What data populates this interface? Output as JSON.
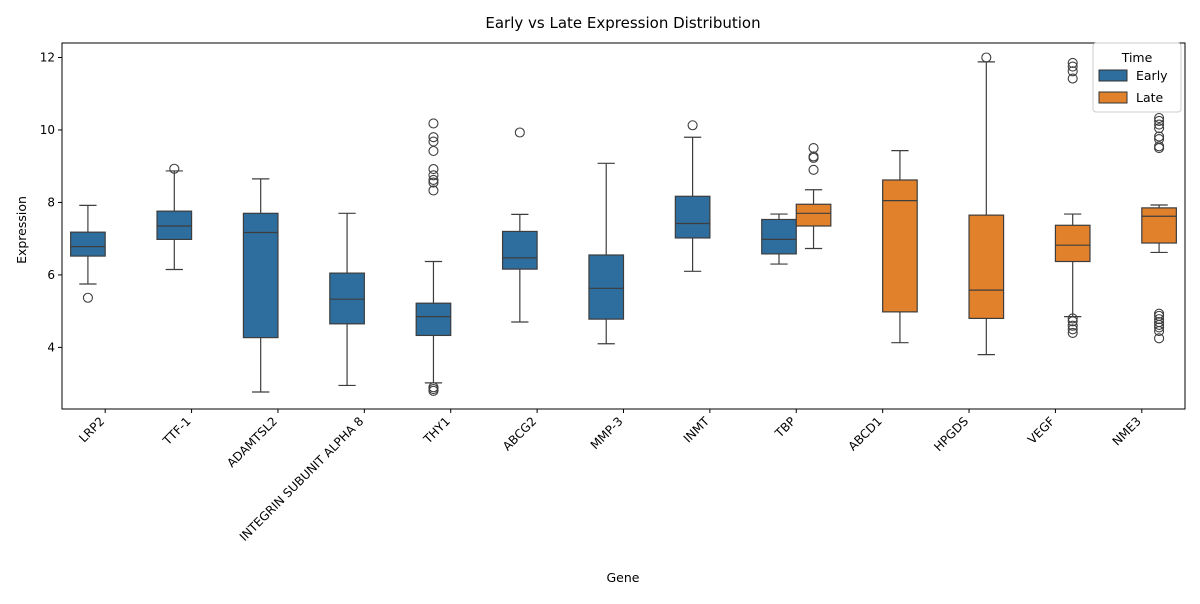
{
  "chart_data": {
    "type": "box",
    "title": "Early vs Late Expression Distribution",
    "xlabel": "Gene",
    "ylabel": "Expression",
    "ylim": [
      2.3,
      12.4
    ],
    "yticks": [
      4,
      6,
      8,
      10,
      12
    ],
    "grid": false,
    "legend": {
      "title": "Time",
      "placement": "top-right",
      "entries": [
        "Early",
        "Late"
      ]
    },
    "categories": [
      "LRP2",
      "TTF-1",
      "ADAMTSL2",
      "INTEGRIN SUBUNIT ALPHA 8",
      "THY1",
      "ABCG2",
      "MMP-3",
      "INMT",
      "TBP",
      "ABCD1",
      "HPGDS",
      "VEGF",
      "NME3"
    ],
    "series": [
      {
        "name": "Early",
        "color": "#2e6e9e",
        "boxes": [
          {
            "category": "LRP2",
            "whislo": 5.75,
            "q1": 6.52,
            "med": 6.78,
            "q3": 7.18,
            "whishi": 7.92,
            "fliers": [
              5.37
            ]
          },
          {
            "category": "TTF-1",
            "whislo": 6.15,
            "q1": 6.98,
            "med": 7.35,
            "q3": 7.76,
            "whishi": 8.87,
            "fliers": [
              8.93
            ]
          },
          {
            "category": "ADAMTSL2",
            "whislo": 2.77,
            "q1": 4.27,
            "med": 7.17,
            "q3": 7.7,
            "whishi": 8.65,
            "fliers": []
          },
          {
            "category": "INTEGRIN SUBUNIT ALPHA 8",
            "whislo": 2.95,
            "q1": 4.65,
            "med": 5.33,
            "q3": 6.05,
            "whishi": 7.7,
            "fliers": []
          },
          {
            "category": "THY1",
            "whislo": 3.02,
            "q1": 4.33,
            "med": 4.85,
            "q3": 5.22,
            "whishi": 6.37,
            "fliers": [
              2.8,
              2.85,
              2.9,
              8.33,
              8.55,
              8.62,
              8.75,
              8.92,
              9.42,
              9.68,
              9.8,
              10.18
            ]
          },
          {
            "category": "ABCG2",
            "whislo": 4.7,
            "q1": 6.16,
            "med": 6.47,
            "q3": 7.2,
            "whishi": 7.67,
            "fliers": [
              9.93
            ]
          },
          {
            "category": "MMP-3",
            "whislo": 4.1,
            "q1": 4.78,
            "med": 5.63,
            "q3": 6.55,
            "whishi": 9.08,
            "fliers": []
          },
          {
            "category": "INMT",
            "whislo": 6.1,
            "q1": 7.02,
            "med": 7.42,
            "q3": 8.17,
            "whishi": 9.8,
            "fliers": [
              10.13
            ]
          },
          {
            "category": "TBP",
            "whislo": 6.3,
            "q1": 6.58,
            "med": 6.98,
            "q3": 7.53,
            "whishi": 7.68,
            "fliers": []
          }
        ]
      },
      {
        "name": "Late",
        "color": "#e1812c",
        "boxes": [
          {
            "category": "TBP",
            "whislo": 6.73,
            "q1": 7.35,
            "med": 7.7,
            "q3": 7.95,
            "whishi": 8.35,
            "fliers": [
              8.9,
              9.23,
              9.27,
              9.5
            ]
          },
          {
            "category": "ABCD1",
            "whislo": 4.13,
            "q1": 4.98,
            "med": 8.05,
            "q3": 8.62,
            "whishi": 9.43,
            "fliers": []
          },
          {
            "category": "HPGDS",
            "whislo": 3.8,
            "q1": 4.8,
            "med": 5.58,
            "q3": 7.65,
            "whishi": 11.88,
            "fliers": [
              12.0
            ]
          },
          {
            "category": "VEGF",
            "whislo": 4.85,
            "q1": 6.37,
            "med": 6.82,
            "q3": 7.37,
            "whishi": 7.68,
            "fliers": [
              4.4,
              4.5,
              4.6,
              4.72,
              4.8,
              11.42,
              11.62,
              11.75,
              11.85
            ]
          },
          {
            "category": "NME3",
            "whislo": 6.62,
            "q1": 6.88,
            "med": 7.62,
            "q3": 7.85,
            "whishi": 7.93,
            "fliers": [
              4.25,
              4.45,
              4.55,
              4.62,
              4.7,
              4.78,
              4.87,
              4.93,
              9.5,
              9.55,
              9.75,
              9.82,
              10.05,
              10.15,
              10.25,
              10.33
            ]
          }
        ]
      }
    ]
  }
}
